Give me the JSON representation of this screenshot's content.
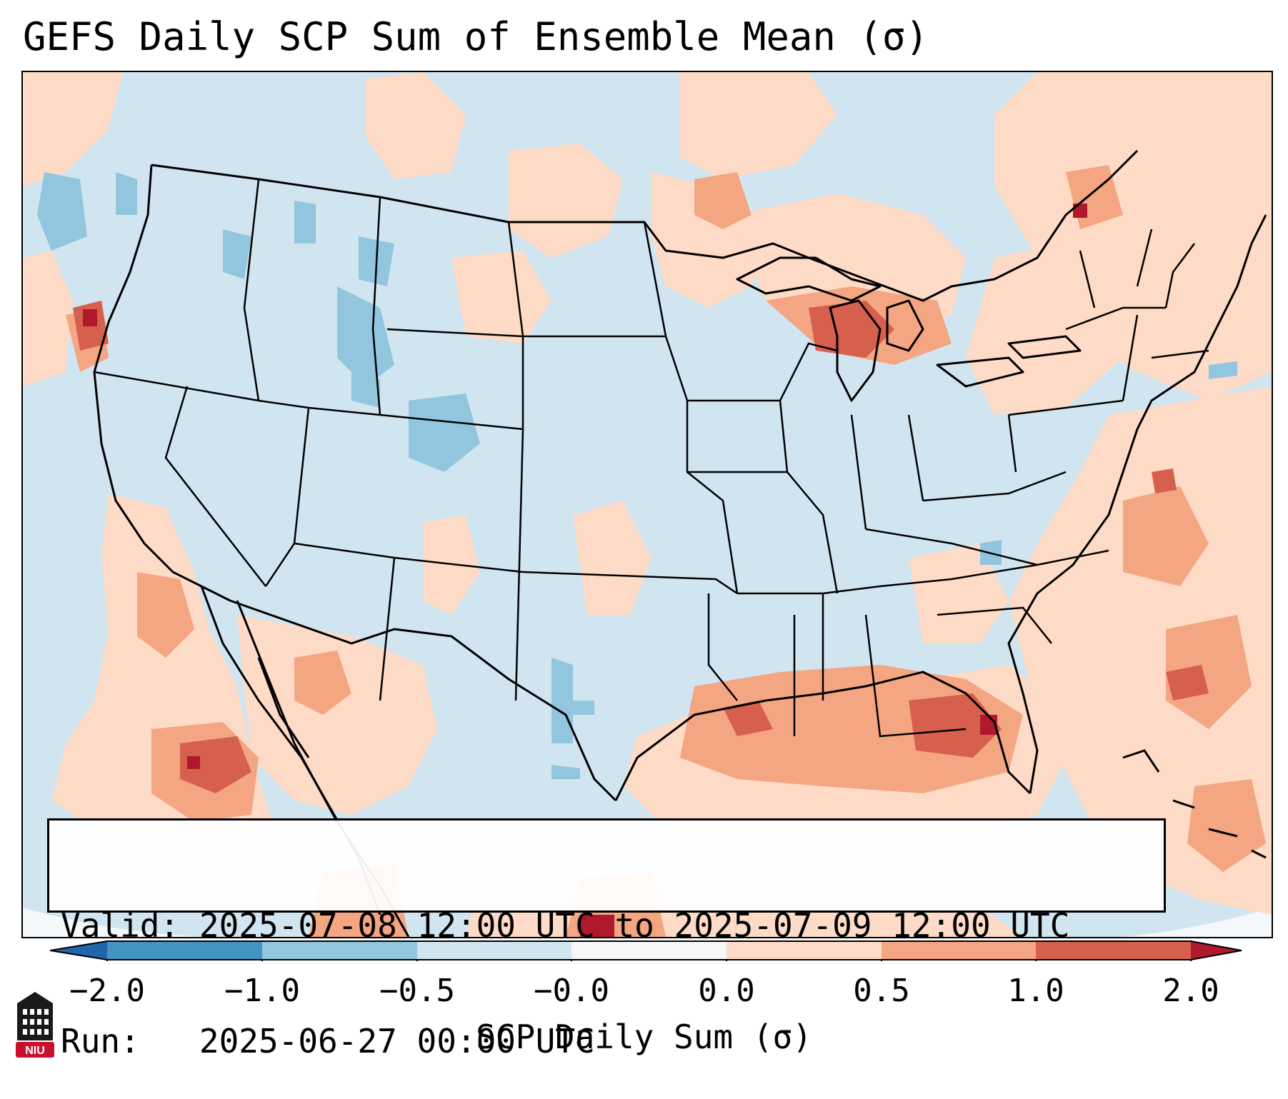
{
  "title": "GEFS Daily SCP Sum of Ensemble Mean (σ)",
  "info": {
    "valid_label": "Valid:",
    "valid_value": "2025-07-08 12:00 UTC to 2025-07-09 12:00 UTC",
    "run_label": "Run:",
    "run_value": "2025-06-27 00:00 UTC"
  },
  "colorbar": {
    "ticks": [
      "−2.0",
      "−1.0",
      "−0.5",
      "−0.0",
      "0.0",
      "0.5",
      "1.0",
      "2.0"
    ],
    "label": "SCP Daily Sum (σ)",
    "colors": {
      "lt_neg2": "#2166ac",
      "neg2_neg1": "#4393c3",
      "neg1_neg05": "#92c5de",
      "neg05_0": "#d1e5f0",
      "zero": "#f7f7f7",
      "pos0_05": "#fddbc7",
      "pos05_1": "#f4a582",
      "pos1_2": "#d6604d",
      "gt_2": "#b2182b"
    }
  },
  "logo": {
    "text": "NIU",
    "color": "#c8102e"
  },
  "map": {
    "region": "Continental United States",
    "background_color": "#d1e5f0",
    "land_background_color": "#d1e5f0",
    "border_color": "#000000"
  }
}
